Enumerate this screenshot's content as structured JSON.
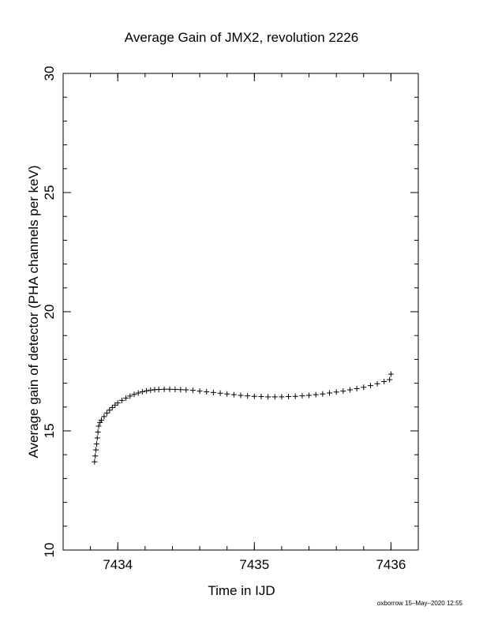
{
  "chart_data": {
    "type": "scatter",
    "title": "Average Gain of JMX2, revolution 2226",
    "xlabel": "Time in IJD",
    "ylabel": "Average gain of detector (PHA channels per keV)",
    "xlim": [
      7433.6,
      7436.2
    ],
    "ylim": [
      10,
      30
    ],
    "xticks": [
      7434,
      7435,
      7436
    ],
    "yticks": [
      10,
      15,
      20,
      25,
      30
    ],
    "x_minor_step": 0.2,
    "y_minor_step": 1,
    "grid": false,
    "marker": "plus",
    "series": [
      {
        "points": [
          [
            7433.83,
            13.7
          ],
          [
            7433.835,
            13.95
          ],
          [
            7433.84,
            14.2
          ],
          [
            7433.845,
            14.45
          ],
          [
            7433.85,
            14.7
          ],
          [
            7433.855,
            14.95
          ],
          [
            7433.86,
            15.2
          ],
          [
            7433.87,
            15.35
          ],
          [
            7433.88,
            15.45
          ],
          [
            7433.9,
            15.6
          ],
          [
            7433.92,
            15.75
          ],
          [
            7433.94,
            15.87
          ],
          [
            7433.96,
            15.98
          ],
          [
            7433.98,
            16.08
          ],
          [
            7434.0,
            16.17
          ],
          [
            7434.03,
            16.28
          ],
          [
            7434.06,
            16.38
          ],
          [
            7434.09,
            16.46
          ],
          [
            7434.12,
            16.53
          ],
          [
            7434.15,
            16.59
          ],
          [
            7434.18,
            16.64
          ],
          [
            7434.21,
            16.68
          ],
          [
            7434.24,
            16.71
          ],
          [
            7434.27,
            16.73
          ],
          [
            7434.3,
            16.74
          ],
          [
            7434.34,
            16.745
          ],
          [
            7434.38,
            16.745
          ],
          [
            7434.42,
            16.74
          ],
          [
            7434.46,
            16.73
          ],
          [
            7434.5,
            16.72
          ],
          [
            7434.55,
            16.7
          ],
          [
            7434.6,
            16.67
          ],
          [
            7434.65,
            16.64
          ],
          [
            7434.7,
            16.61
          ],
          [
            7434.75,
            16.58
          ],
          [
            7434.8,
            16.55
          ],
          [
            7434.85,
            16.52
          ],
          [
            7434.9,
            16.49
          ],
          [
            7434.95,
            16.47
          ],
          [
            7435.0,
            16.45
          ],
          [
            7435.05,
            16.44
          ],
          [
            7435.1,
            16.43
          ],
          [
            7435.15,
            16.43
          ],
          [
            7435.2,
            16.43
          ],
          [
            7435.25,
            16.44
          ],
          [
            7435.3,
            16.45
          ],
          [
            7435.35,
            16.47
          ],
          [
            7435.4,
            16.49
          ],
          [
            7435.45,
            16.52
          ],
          [
            7435.5,
            16.55
          ],
          [
            7435.55,
            16.59
          ],
          [
            7435.6,
            16.63
          ],
          [
            7435.65,
            16.67
          ],
          [
            7435.7,
            16.72
          ],
          [
            7435.75,
            16.77
          ],
          [
            7435.8,
            16.83
          ],
          [
            7435.85,
            16.9
          ],
          [
            7435.9,
            16.98
          ],
          [
            7435.95,
            17.07
          ],
          [
            7435.99,
            17.15
          ],
          [
            7436.0,
            17.38
          ]
        ]
      }
    ]
  },
  "footer_text": "oxborrow 15–May–2020 12:55"
}
